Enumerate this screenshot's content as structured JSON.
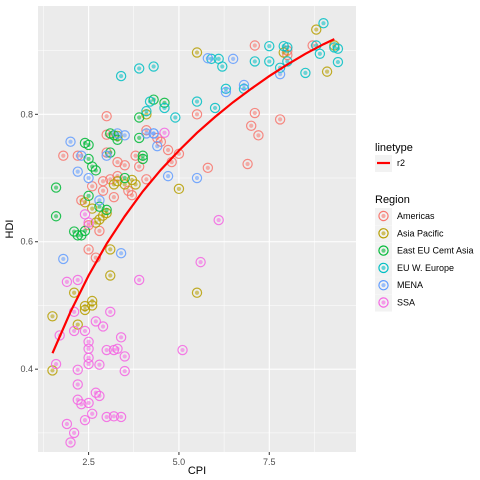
{
  "chart_data": {
    "type": "scatter",
    "xlabel": "CPI",
    "ylabel": "HDI",
    "xlim": [
      1.1,
      9.9
    ],
    "ylim": [
      0.27,
      0.97
    ],
    "x_ticks": [
      2.5,
      5.0,
      7.5
    ],
    "x_tick_labels": [
      "2.5",
      "5.0",
      "7.5"
    ],
    "y_ticks": [
      0.4,
      0.6,
      0.8
    ],
    "y_tick_labels": [
      "0.4",
      "0.6",
      "0.8"
    ],
    "grid": true,
    "legend_position": "right",
    "line_legend": {
      "title": "linetype",
      "entries": [
        {
          "label": "r2",
          "color": "#ff0000"
        }
      ]
    },
    "trend_line": {
      "name": "r2",
      "color": "#ff0000",
      "points": [
        [
          1.5,
          0.425
        ],
        [
          2.0,
          0.49
        ],
        [
          2.5,
          0.547
        ],
        [
          3.0,
          0.597
        ],
        [
          3.5,
          0.64
        ],
        [
          4.0,
          0.679
        ],
        [
          4.5,
          0.713
        ],
        [
          5.0,
          0.743
        ],
        [
          5.5,
          0.771
        ],
        [
          6.0,
          0.796
        ],
        [
          6.5,
          0.819
        ],
        [
          7.0,
          0.84
        ],
        [
          7.5,
          0.86
        ],
        [
          8.0,
          0.878
        ],
        [
          8.5,
          0.895
        ],
        [
          9.0,
          0.91
        ],
        [
          9.3,
          0.918
        ]
      ]
    },
    "region_legend": {
      "title": "Region",
      "entries": [
        "Americas",
        "Asia Pacific",
        "East EU Cemt Asia",
        "EU W. Europe",
        "MENA",
        "SSA"
      ]
    },
    "colors": {
      "Americas": "#f8766d",
      "Asia Pacific": "#b79f00",
      "East EU Cemt Asia": "#00ba38",
      "EU W. Europe": "#00bfc4",
      "MENA": "#619cff",
      "SSA": "#f564e3"
    },
    "series": [
      {
        "name": "Americas",
        "points": [
          [
            2.3,
            0.665
          ],
          [
            2.5,
            0.588
          ],
          [
            2.7,
            0.575
          ],
          [
            2.9,
            0.695
          ],
          [
            3.0,
            0.797
          ],
          [
            3.0,
            0.768
          ],
          [
            3.0,
            0.74
          ],
          [
            3.1,
            0.698
          ],
          [
            3.2,
            0.67
          ],
          [
            3.3,
            0.725
          ],
          [
            3.3,
            0.703
          ],
          [
            3.5,
            0.72
          ],
          [
            3.6,
            0.68
          ],
          [
            3.7,
            0.673
          ],
          [
            3.8,
            0.735
          ],
          [
            3.9,
            0.718
          ],
          [
            4.1,
            0.775
          ],
          [
            4.1,
            0.698
          ],
          [
            4.4,
            0.763
          ],
          [
            4.5,
            0.757
          ],
          [
            4.7,
            0.744
          ],
          [
            4.8,
            0.725
          ],
          [
            5.0,
            0.738
          ],
          [
            5.5,
            0.8
          ],
          [
            5.8,
            0.716
          ],
          [
            6.9,
            0.722
          ],
          [
            7.0,
            0.782
          ],
          [
            7.1,
            0.802
          ],
          [
            7.2,
            0.767
          ],
          [
            7.1,
            0.908
          ],
          [
            7.8,
            0.792
          ],
          [
            8.0,
            0.9
          ],
          [
            8.7,
            0.908
          ],
          [
            8.0,
            0.893
          ],
          [
            1.8,
            0.735
          ],
          [
            2.2,
            0.735
          ],
          [
            2.6,
            0.687
          ],
          [
            2.9,
            0.68
          ],
          [
            2.8,
            0.617
          ],
          [
            2.5,
            0.626
          ]
        ]
      },
      {
        "name": "Asia Pacific",
        "points": [
          [
            1.5,
            0.483
          ],
          [
            1.5,
            0.398
          ],
          [
            2.1,
            0.52
          ],
          [
            2.2,
            0.47
          ],
          [
            2.4,
            0.499
          ],
          [
            2.4,
            0.493
          ],
          [
            2.6,
            0.507
          ],
          [
            2.6,
            0.5
          ],
          [
            2.7,
            0.63
          ],
          [
            2.4,
            0.662
          ],
          [
            2.6,
            0.652
          ],
          [
            2.8,
            0.635
          ],
          [
            2.9,
            0.641
          ],
          [
            3.0,
            0.645
          ],
          [
            3.1,
            0.588
          ],
          [
            3.2,
            0.69
          ],
          [
            3.3,
            0.695
          ],
          [
            3.3,
            0.766
          ],
          [
            3.5,
            0.69
          ],
          [
            3.7,
            0.697
          ],
          [
            3.8,
            0.69
          ],
          [
            4.1,
            0.8
          ],
          [
            5.0,
            0.683
          ],
          [
            5.5,
            0.897
          ],
          [
            5.5,
            0.52
          ],
          [
            3.1,
            0.547
          ],
          [
            7.9,
            0.897
          ],
          [
            9.1,
            0.867
          ],
          [
            9.3,
            0.908
          ],
          [
            8.8,
            0.933
          ]
        ]
      },
      {
        "name": "East EU Cemt Asia",
        "points": [
          [
            1.6,
            0.685
          ],
          [
            1.6,
            0.64
          ],
          [
            2.1,
            0.616
          ],
          [
            2.3,
            0.61
          ],
          [
            2.4,
            0.755
          ],
          [
            2.5,
            0.752
          ],
          [
            2.5,
            0.73
          ],
          [
            2.6,
            0.718
          ],
          [
            2.7,
            0.712
          ],
          [
            2.5,
            0.672
          ],
          [
            2.8,
            0.655
          ],
          [
            3.0,
            0.65
          ],
          [
            3.1,
            0.77
          ],
          [
            3.3,
            0.76
          ],
          [
            3.1,
            0.74
          ],
          [
            3.5,
            0.7
          ],
          [
            3.9,
            0.763
          ],
          [
            4.0,
            0.735
          ],
          [
            4.3,
            0.823
          ],
          [
            4.6,
            0.818
          ],
          [
            3.9,
            0.795
          ],
          [
            4.0,
            0.73
          ],
          [
            3.2,
            0.767
          ],
          [
            2.2,
            0.61
          ],
          [
            2.4,
            0.617
          ]
        ]
      },
      {
        "name": "EU W. Europe",
        "points": [
          [
            3.4,
            0.86
          ],
          [
            3.9,
            0.872
          ],
          [
            4.1,
            0.805
          ],
          [
            4.2,
            0.82
          ],
          [
            4.6,
            0.81
          ],
          [
            4.9,
            0.795
          ],
          [
            5.5,
            0.82
          ],
          [
            6.0,
            0.81
          ],
          [
            6.2,
            0.875
          ],
          [
            6.3,
            0.84
          ],
          [
            6.8,
            0.84
          ],
          [
            7.1,
            0.883
          ],
          [
            7.5,
            0.907
          ],
          [
            7.5,
            0.883
          ],
          [
            7.8,
            0.873
          ],
          [
            7.9,
            0.907
          ],
          [
            8.0,
            0.883
          ],
          [
            8.0,
            0.905
          ],
          [
            8.5,
            0.865
          ],
          [
            8.8,
            0.908
          ],
          [
            8.9,
            0.895
          ],
          [
            9.0,
            0.943
          ],
          [
            9.3,
            0.905
          ],
          [
            9.4,
            0.903
          ],
          [
            9.4,
            0.882
          ],
          [
            6.1,
            0.887
          ],
          [
            5.9,
            0.887
          ],
          [
            4.3,
            0.875
          ]
        ]
      },
      {
        "name": "MENA",
        "points": [
          [
            1.8,
            0.573
          ],
          [
            2.0,
            0.757
          ],
          [
            2.2,
            0.71
          ],
          [
            2.3,
            0.735
          ],
          [
            2.5,
            0.7
          ],
          [
            2.8,
            0.665
          ],
          [
            3.4,
            0.582
          ],
          [
            3.0,
            0.735
          ],
          [
            3.3,
            0.77
          ],
          [
            3.5,
            0.767
          ],
          [
            4.1,
            0.77
          ],
          [
            4.3,
            0.77
          ],
          [
            4.4,
            0.75
          ],
          [
            4.7,
            0.703
          ],
          [
            5.5,
            0.7
          ],
          [
            5.8,
            0.888
          ],
          [
            6.3,
            0.835
          ],
          [
            6.8,
            0.846
          ],
          [
            7.8,
            0.863
          ],
          [
            4.3,
            0.77
          ],
          [
            6.5,
            0.887
          ]
        ]
      },
      {
        "name": "SSA",
        "points": [
          [
            1.6,
            0.408
          ],
          [
            1.7,
            0.453
          ],
          [
            1.9,
            0.537
          ],
          [
            1.9,
            0.314
          ],
          [
            2.0,
            0.285
          ],
          [
            2.1,
            0.3
          ],
          [
            2.1,
            0.49
          ],
          [
            2.1,
            0.46
          ],
          [
            2.2,
            0.54
          ],
          [
            2.2,
            0.399
          ],
          [
            2.2,
            0.376
          ],
          [
            2.2,
            0.352
          ],
          [
            2.3,
            0.345
          ],
          [
            2.4,
            0.46
          ],
          [
            2.4,
            0.32
          ],
          [
            2.5,
            0.347
          ],
          [
            2.5,
            0.432
          ],
          [
            2.5,
            0.443
          ],
          [
            2.5,
            0.408
          ],
          [
            2.5,
            0.418
          ],
          [
            2.6,
            0.33
          ],
          [
            2.7,
            0.363
          ],
          [
            2.8,
            0.358
          ],
          [
            2.7,
            0.475
          ],
          [
            2.9,
            0.467
          ],
          [
            3.0,
            0.43
          ],
          [
            3.0,
            0.325
          ],
          [
            3.1,
            0.49
          ],
          [
            3.2,
            0.43
          ],
          [
            3.3,
            0.432
          ],
          [
            3.4,
            0.45
          ],
          [
            3.5,
            0.42
          ],
          [
            3.5,
            0.397
          ],
          [
            3.4,
            0.325
          ],
          [
            3.2,
            0.326
          ],
          [
            2.4,
            0.643
          ],
          [
            2.5,
            0.63
          ],
          [
            3.9,
            0.54
          ],
          [
            4.6,
            0.771
          ],
          [
            5.1,
            0.43
          ],
          [
            5.6,
            0.568
          ],
          [
            6.1,
            0.634
          ],
          [
            2.8,
            0.407
          ]
        ]
      }
    ]
  }
}
